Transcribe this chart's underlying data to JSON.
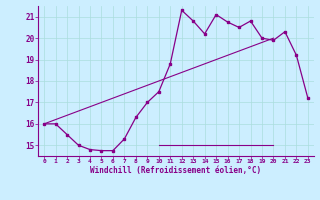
{
  "xlabel": "Windchill (Refroidissement éolien,°C)",
  "bg_color": "#cceeff",
  "line_color": "#880088",
  "grid_color": "#aadddd",
  "xlim": [
    -0.5,
    23.5
  ],
  "ylim": [
    14.5,
    21.5
  ],
  "xticks": [
    0,
    1,
    2,
    3,
    4,
    5,
    6,
    7,
    8,
    9,
    10,
    11,
    12,
    13,
    14,
    15,
    16,
    17,
    18,
    19,
    20,
    21,
    22,
    23
  ],
  "yticks": [
    15,
    16,
    17,
    18,
    19,
    20,
    21
  ],
  "hours": [
    0,
    1,
    2,
    3,
    4,
    5,
    6,
    7,
    8,
    9,
    10,
    11,
    12,
    13,
    14,
    15,
    16,
    17,
    18,
    19,
    20,
    21,
    22,
    23
  ],
  "windchill": [
    16.0,
    16.0,
    15.5,
    15.0,
    14.8,
    14.75,
    14.75,
    15.3,
    16.3,
    17.0,
    17.5,
    18.8,
    21.3,
    20.8,
    20.2,
    21.1,
    20.75,
    20.5,
    20.8,
    20.0,
    19.9,
    20.3,
    19.2,
    17.2
  ],
  "flat_line_x": [
    10,
    20
  ],
  "flat_line_y": [
    15.0,
    15.0
  ],
  "diag_line_x": [
    0,
    20
  ],
  "diag_line_y": [
    16.0,
    20.0
  ]
}
